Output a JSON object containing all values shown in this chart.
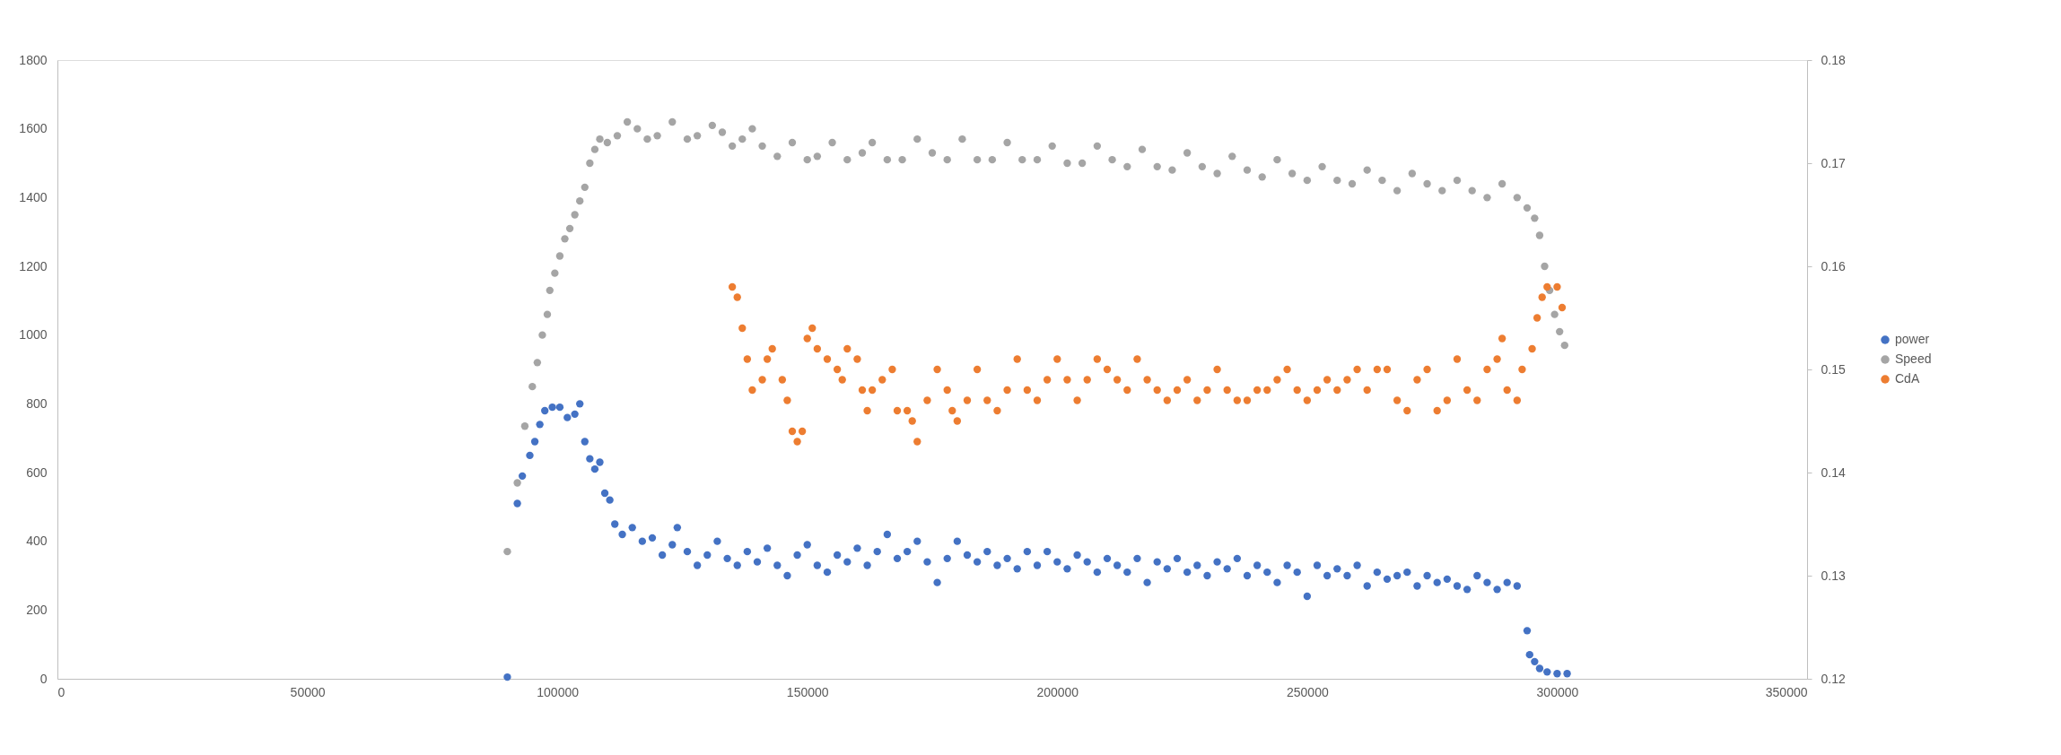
{
  "chart_data": {
    "type": "scatter",
    "marker": "circle",
    "grid": false,
    "legend": "right",
    "xlim": [
      0,
      350000
    ],
    "xticks": [
      0,
      50000,
      100000,
      150000,
      200000,
      250000,
      300000,
      350000
    ],
    "ylim": [
      0,
      1800
    ],
    "yticks": [
      0,
      200,
      400,
      600,
      800,
      1000,
      1200,
      1400,
      1600,
      1800
    ],
    "y2lim": [
      0.12,
      0.18
    ],
    "y2ticks": [
      0.12,
      0.13,
      0.14,
      0.15,
      0.16,
      0.17,
      0.18
    ],
    "series": [
      {
        "name": "power",
        "color": "#4472c4",
        "x": [
          90000,
          92000,
          93000,
          94500,
          95500,
          96500,
          97500,
          99000,
          100500,
          102000,
          103500,
          104500,
          105500,
          106500,
          107500,
          108500,
          109500,
          110500,
          111500,
          113000,
          115000,
          117000,
          119000,
          121000,
          123000,
          124000,
          126000,
          128000,
          130000,
          132000,
          134000,
          136000,
          138000,
          140000,
          142000,
          144000,
          146000,
          148000,
          150000,
          152000,
          154000,
          156000,
          158000,
          160000,
          162000,
          164000,
          166000,
          168000,
          170000,
          172000,
          174000,
          176000,
          178000,
          180000,
          182000,
          184000,
          186000,
          188000,
          190000,
          192000,
          194000,
          196000,
          198000,
          200000,
          202000,
          204000,
          206000,
          208000,
          210000,
          212000,
          214000,
          216000,
          218000,
          220000,
          222000,
          224000,
          226000,
          228000,
          230000,
          232000,
          234000,
          236000,
          238000,
          240000,
          242000,
          244000,
          246000,
          248000,
          250000,
          252000,
          254000,
          256000,
          258000,
          260000,
          262000,
          264000,
          266000,
          268000,
          270000,
          272000,
          274000,
          276000,
          278000,
          280000,
          282000,
          284000,
          286000,
          288000,
          290000,
          292000,
          294000,
          294500,
          295500,
          296500,
          298000,
          300000,
          302000
        ],
        "values": [
          5,
          510,
          590,
          650,
          690,
          740,
          780,
          790,
          790,
          760,
          770,
          800,
          690,
          640,
          610,
          630,
          540,
          520,
          450,
          420,
          440,
          400,
          410,
          360,
          390,
          440,
          370,
          330,
          360,
          400,
          350,
          330,
          370,
          340,
          380,
          330,
          300,
          360,
          390,
          330,
          310,
          360,
          340,
          380,
          330,
          370,
          420,
          350,
          370,
          400,
          340,
          280,
          350,
          400,
          360,
          340,
          370,
          330,
          350,
          320,
          370,
          330,
          370,
          340,
          320,
          360,
          340,
          310,
          350,
          330,
          310,
          350,
          280,
          340,
          320,
          350,
          310,
          330,
          300,
          340,
          320,
          350,
          300,
          330,
          310,
          280,
          330,
          310,
          240,
          330,
          300,
          320,
          300,
          330,
          270,
          310,
          290,
          300,
          310,
          270,
          300,
          280,
          290,
          270,
          260,
          300,
          280,
          260,
          280,
          270,
          140,
          70,
          50,
          30,
          20,
          15,
          15
        ]
      },
      {
        "name": "Speed",
        "color": "#a5a5a5",
        "x": [
          90000,
          92000,
          93500,
          95000,
          96000,
          97000,
          98000,
          98500,
          99500,
          100500,
          101500,
          102500,
          103500,
          104500,
          105500,
          106500,
          107500,
          108500,
          110000,
          112000,
          114000,
          116000,
          118000,
          120000,
          123000,
          126000,
          128000,
          131000,
          133000,
          135000,
          137000,
          139000,
          141000,
          144000,
          147000,
          150000,
          152000,
          155000,
          158000,
          161000,
          163000,
          166000,
          169000,
          172000,
          175000,
          178000,
          181000,
          184000,
          187000,
          190000,
          193000,
          196000,
          199000,
          202000,
          205000,
          208000,
          211000,
          214000,
          217000,
          220000,
          223000,
          226000,
          229000,
          232000,
          235000,
          238000,
          241000,
          244000,
          247000,
          250000,
          253000,
          256000,
          259000,
          262000,
          265000,
          268000,
          271000,
          274000,
          277000,
          280000,
          283000,
          286000,
          289000,
          292000,
          294000,
          295500,
          296500,
          297500,
          298500,
          299500,
          300500,
          301500
        ],
        "values": [
          370,
          570,
          735,
          850,
          920,
          1000,
          1060,
          1130,
          1180,
          1230,
          1280,
          1310,
          1350,
          1390,
          1430,
          1500,
          1540,
          1570,
          1560,
          1580,
          1620,
          1600,
          1570,
          1580,
          1620,
          1570,
          1580,
          1610,
          1590,
          1550,
          1570,
          1600,
          1550,
          1520,
          1560,
          1510,
          1520,
          1560,
          1510,
          1530,
          1560,
          1510,
          1510,
          1570,
          1530,
          1510,
          1570,
          1510,
          1510,
          1560,
          1510,
          1510,
          1550,
          1500,
          1500,
          1550,
          1510,
          1490,
          1540,
          1490,
          1480,
          1530,
          1490,
          1470,
          1520,
          1480,
          1460,
          1510,
          1470,
          1450,
          1490,
          1450,
          1440,
          1480,
          1450,
          1420,
          1470,
          1440,
          1420,
          1450,
          1420,
          1400,
          1440,
          1400,
          1370,
          1340,
          1290,
          1200,
          1130,
          1060,
          1010,
          970
        ]
      },
      {
        "name": "CdA",
        "color": "#ed7d31",
        "axis": "y2",
        "x": [
          135000,
          136000,
          137000,
          138000,
          139000,
          141000,
          142000,
          143000,
          145000,
          146000,
          147000,
          148000,
          149000,
          150000,
          151000,
          152000,
          154000,
          156000,
          157000,
          158000,
          160000,
          161000,
          162000,
          163000,
          165000,
          167000,
          168000,
          170000,
          171000,
          172000,
          174000,
          176000,
          178000,
          179000,
          180000,
          182000,
          184000,
          186000,
          188000,
          190000,
          192000,
          194000,
          196000,
          198000,
          200000,
          202000,
          204000,
          206000,
          208000,
          210000,
          212000,
          214000,
          216000,
          218000,
          220000,
          222000,
          224000,
          226000,
          228000,
          230000,
          232000,
          234000,
          236000,
          238000,
          240000,
          242000,
          244000,
          246000,
          248000,
          250000,
          252000,
          254000,
          256000,
          258000,
          260000,
          262000,
          264000,
          266000,
          268000,
          270000,
          272000,
          274000,
          276000,
          278000,
          280000,
          282000,
          284000,
          286000,
          288000,
          289000,
          290000,
          292000,
          293000,
          295000,
          296000,
          297000,
          298000,
          300000,
          301000
        ],
        "values": [
          0.158,
          0.157,
          0.154,
          0.151,
          0.148,
          0.149,
          0.151,
          0.152,
          0.149,
          0.147,
          0.144,
          0.143,
          0.144,
          0.153,
          0.154,
          0.152,
          0.151,
          0.15,
          0.149,
          0.152,
          0.151,
          0.148,
          0.146,
          0.148,
          0.149,
          0.15,
          0.146,
          0.146,
          0.145,
          0.143,
          0.147,
          0.15,
          0.148,
          0.146,
          0.145,
          0.147,
          0.15,
          0.147,
          0.146,
          0.148,
          0.151,
          0.148,
          0.147,
          0.149,
          0.151,
          0.149,
          0.147,
          0.149,
          0.151,
          0.15,
          0.149,
          0.148,
          0.151,
          0.149,
          0.148,
          0.147,
          0.148,
          0.149,
          0.147,
          0.148,
          0.15,
          0.148,
          0.147,
          0.147,
          0.148,
          0.148,
          0.149,
          0.15,
          0.148,
          0.147,
          0.148,
          0.149,
          0.148,
          0.149,
          0.15,
          0.148,
          0.15,
          0.15,
          0.147,
          0.146,
          0.149,
          0.15,
          0.146,
          0.147,
          0.151,
          0.148,
          0.147,
          0.15,
          0.151,
          0.153,
          0.148,
          0.147,
          0.15,
          0.152,
          0.155,
          0.157,
          0.158,
          0.158,
          0.156
        ]
      }
    ]
  }
}
